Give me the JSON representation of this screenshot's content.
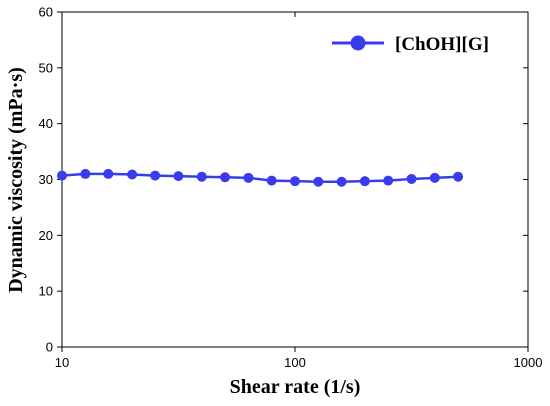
{
  "chart_data": {
    "type": "line",
    "xlabel": "Shear rate (1/s)",
    "ylabel": "Dynamic viscosity (mPa·s)",
    "xscale": "log",
    "xlim": [
      10,
      1000
    ],
    "ylim": [
      0,
      60
    ],
    "xticks": [
      10,
      100,
      1000
    ],
    "xtick_labels": [
      "10",
      "100",
      "1000"
    ],
    "yticks": [
      0,
      10,
      20,
      30,
      40,
      50,
      60
    ],
    "ytick_labels": [
      "0",
      "10",
      "20",
      "30",
      "40",
      "50",
      "60"
    ],
    "grid": false,
    "legend_position": "top-right",
    "series": [
      {
        "name": "[ChOH][G]",
        "color": "#3b3bee",
        "marker": "circle",
        "x": [
          10,
          12.6,
          15.8,
          20,
          25.1,
          31.6,
          39.8,
          50.1,
          63.1,
          79.4,
          100,
          125.9,
          158.5,
          199.5,
          251.2,
          316.2,
          398.1,
          501.2
        ],
        "y": [
          30.7,
          31.0,
          31.0,
          30.9,
          30.7,
          30.6,
          30.5,
          30.4,
          30.3,
          29.8,
          29.7,
          29.6,
          29.6,
          29.7,
          29.8,
          30.1,
          30.3,
          30.5
        ]
      }
    ]
  }
}
